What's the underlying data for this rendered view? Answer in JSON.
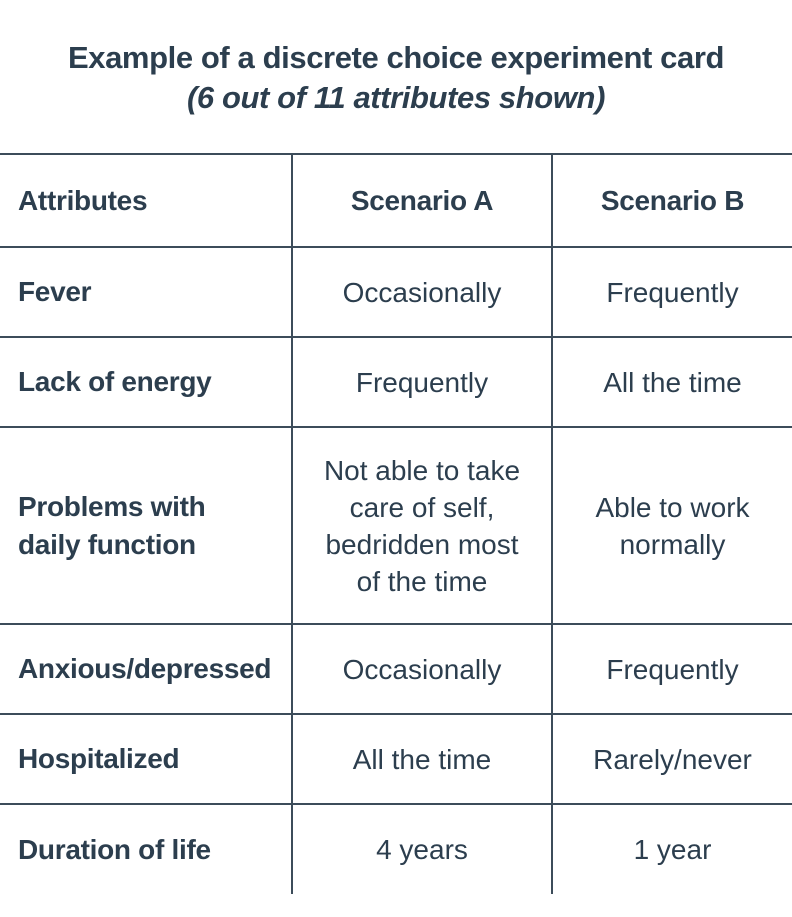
{
  "title": "Example of a discrete choice experiment card",
  "subtitle": "(6 out of 11 attributes shown)",
  "headers": {
    "attributes": "Attributes",
    "scenario_a": "Scenario A",
    "scenario_b": "Scenario B"
  },
  "rows": [
    {
      "attribute": "Fever",
      "scenario_a": "Occasionally",
      "scenario_b": "Frequently"
    },
    {
      "attribute": "Lack of energy",
      "scenario_a": "Frequently",
      "scenario_b": "All the time"
    },
    {
      "attribute": "Problems with daily function",
      "scenario_a": "Not able to take care of self, bedridden most of the time",
      "scenario_b": "Able to work normally"
    },
    {
      "attribute": "Anxious/depressed",
      "scenario_a": "Occasionally",
      "scenario_b": "Frequently"
    },
    {
      "attribute": "Hospitalized",
      "scenario_a": "All the time",
      "scenario_b": "Rarely/never"
    },
    {
      "attribute": "Duration of life",
      "scenario_a": "4 years",
      "scenario_b": "1 year"
    }
  ],
  "colors": {
    "text": "#2c3e4e",
    "rule": "#3c4c5a",
    "background": "#ffffff"
  }
}
